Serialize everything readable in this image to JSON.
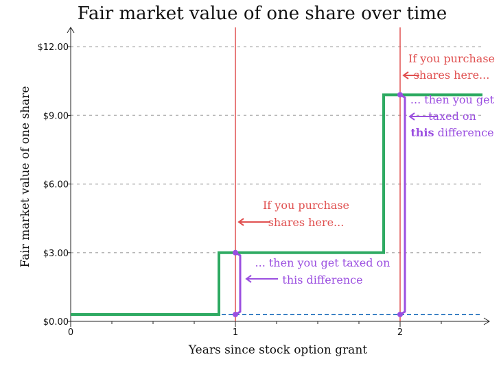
{
  "chart_data": {
    "type": "line",
    "title": "Fair market value of one share over time",
    "xlabel": "Years since stock option grant",
    "ylabel": "Fair market value of one share",
    "xlim": [
      0,
      2.5
    ],
    "ylim": [
      0,
      12.5
    ],
    "x_ticks": [
      {
        "value": 0,
        "label": "0"
      },
      {
        "value": 1,
        "label": "1"
      },
      {
        "value": 2,
        "label": "2"
      }
    ],
    "x_minor_ticks": [
      0.25,
      0.5,
      0.75,
      1.25,
      1.5,
      1.75,
      2.25
    ],
    "y_ticks": [
      {
        "value": 0,
        "label": "$0.00"
      },
      {
        "value": 3,
        "label": "$3.00"
      },
      {
        "value": 6,
        "label": "$6.00"
      },
      {
        "value": 9,
        "label": "$9.00"
      },
      {
        "value": 12,
        "label": "$12.00"
      }
    ],
    "grid": "horizontal dashed",
    "series": [
      {
        "style": "step",
        "color": "#2eaa62",
        "x": [
          0,
          0.9,
          0.9,
          1.9,
          1.9,
          2.5
        ],
        "y": [
          0.3,
          0.3,
          3.0,
          3.0,
          9.9,
          9.9
        ]
      }
    ],
    "baseline": {
      "y": 0.3,
      "color": "#3b82c4",
      "style": "dashed"
    },
    "vertical_lines": [
      {
        "x": 1,
        "color": "#e05050"
      },
      {
        "x": 2,
        "color": "#e05050"
      }
    ],
    "difference_brackets": [
      {
        "x": 1.0,
        "y_low": 0.3,
        "y_high": 3.0,
        "color": "#9b4fe0"
      },
      {
        "x": 2.0,
        "y_low": 0.3,
        "y_high": 9.9,
        "color": "#9b4fe0"
      }
    ],
    "annotations": [
      {
        "lines": [
          {
            "text": "If you purchase"
          },
          {
            "text": "shares here..."
          }
        ],
        "color": "#e05050"
      },
      {
        "lines": [
          {
            "text": "... then you get taxed on"
          },
          {
            "text": "this difference"
          }
        ],
        "color": "#9b4fe0"
      },
      {
        "lines": [
          {
            "text": "If you purchase"
          },
          {
            "text": "shares here..."
          }
        ],
        "color": "#e05050"
      },
      {
        "lines": [
          {
            "text": "... then you get"
          },
          {
            "text": "taxed on"
          },
          {
            "text": "this",
            "bold": true,
            "rest": " difference"
          }
        ],
        "color": "#9b4fe0"
      }
    ]
  }
}
